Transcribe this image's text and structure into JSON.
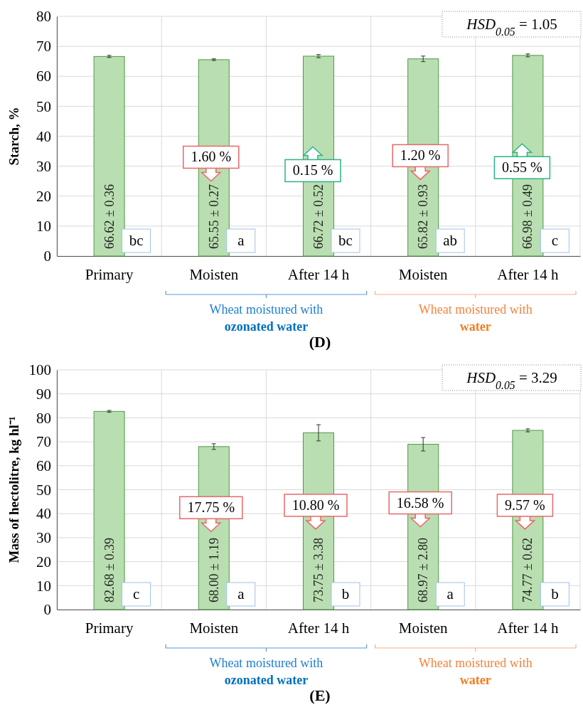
{
  "chart_data": [
    {
      "type": "bar",
      "title": "(D)",
      "ylabel": "Starch, %",
      "categories": [
        "Primary",
        "Moisten",
        "After 14 h",
        "Moisten",
        "After 14 h"
      ],
      "values": [
        66.62,
        65.55,
        66.72,
        65.82,
        66.98
      ],
      "errors": [
        0.36,
        0.27,
        0.52,
        0.93,
        0.49
      ],
      "value_labels": [
        "66.62 ± 0.36",
        "65.55 ± 0.27",
        "66.72 ± 0.52",
        "65.82 ± 0.93",
        "66.98 ± 0.49"
      ],
      "color": "#b9deb1",
      "ylim": [
        0,
        80
      ],
      "yticks": [
        0,
        10,
        20,
        30,
        40,
        50,
        60,
        70,
        80
      ],
      "grid": true,
      "annotations": [
        "HSD$_{0.05}$ = 1.05",
        "bc",
        "a",
        "bc",
        "ab",
        "c",
        "1.60 %",
        "0.15 %",
        "1.20 %",
        "0.55 %",
        "Wheat moistured with",
        "ozonated water",
        "Wheat moistured with",
        "water"
      ]
    },
    {
      "type": "bar",
      "title": "(E)",
      "ylabel": "Mass of hectolitre, kg hl⁻¹",
      "categories": [
        "Primary",
        "Moisten",
        "After 14 h",
        "Moisten",
        "After 14 h"
      ],
      "values": [
        82.68,
        68.0,
        73.75,
        68.97,
        74.77
      ],
      "errors": [
        0.39,
        1.19,
        3.38,
        2.8,
        0.62
      ],
      "value_labels": [
        "82.68 ± 0.39",
        "68.00 ± 1.19",
        "73.75 ± 3.38",
        "68.97 ± 2.80",
        "74.77 ± 0.62"
      ],
      "color": "#b9deb1",
      "ylim": [
        0,
        100
      ],
      "yticks": [
        0,
        10,
        20,
        30,
        40,
        50,
        60,
        70,
        80,
        90,
        100
      ],
      "grid": true,
      "annotations": [
        "HSD$_{0.05}$ = 3.29",
        "c",
        "a",
        "b",
        "a",
        "b",
        "17.75 %",
        "10.80 %",
        "16.58 %",
        "9.57 %",
        "Wheat moistured with",
        "ozonated water",
        "Wheat moistured with",
        "water"
      ]
    }
  ]
}
